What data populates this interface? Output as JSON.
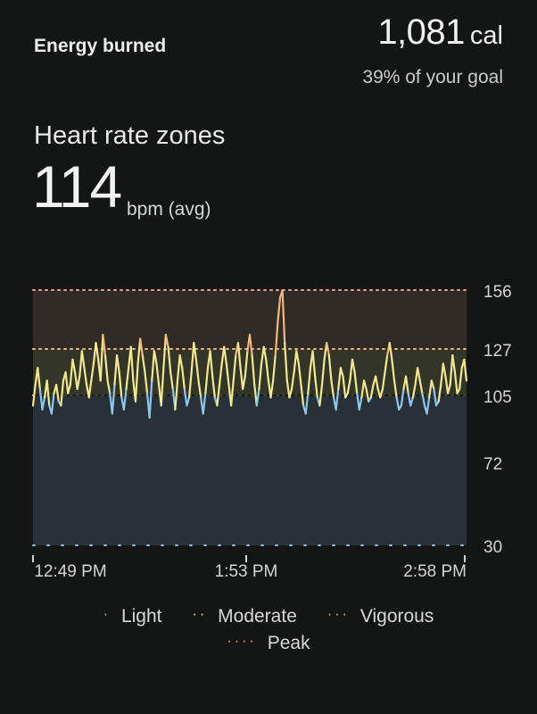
{
  "energy": {
    "label": "Energy burned",
    "value": "1,081",
    "unit": "cal",
    "goal_text": "39% of your goal"
  },
  "heart_rate": {
    "title": "Heart rate zones",
    "avg_value": "114",
    "avg_unit": "bpm (avg)"
  },
  "colors": {
    "light": "#8ec5ef",
    "moderate": "#f2e88e",
    "vigorous": "#f1b77c",
    "peak": "#f2a09a",
    "zone_light_bg": "#283236",
    "zone_moderate_bg": "#333529",
    "zone_vigorous_bg": "#302b27"
  },
  "chart_data": {
    "type": "line",
    "title": "",
    "xlabel": "",
    "ylabel": "",
    "x_ticks": [
      "12:49 PM",
      "1:53 PM",
      "2:58 PM"
    ],
    "y_ticks": [
      30,
      72,
      105,
      127,
      156
    ],
    "ylim": [
      30,
      156
    ],
    "zones": [
      {
        "name": "Light",
        "from": 30,
        "to": 105
      },
      {
        "name": "Moderate",
        "from": 105,
        "to": 127
      },
      {
        "name": "Vigorous",
        "from": 127,
        "to": 156
      },
      {
        "name": "Peak",
        "from": 156,
        "to": 156
      }
    ],
    "legend": [
      "Light",
      "Moderate",
      "Vigorous",
      "Peak"
    ],
    "series": [
      {
        "values": [
          100,
          110,
          118,
          108,
          98,
          104,
          112,
          100,
          96,
          106,
          110,
          102,
          100,
          112,
          116,
          106,
          110,
          122,
          116,
          108,
          114,
          126,
          118,
          110,
          104,
          112,
          120,
          130,
          122,
          112,
          134,
          124,
          112,
          106,
          96,
          110,
          124,
          116,
          104,
          98,
          108,
          118,
          128,
          112,
          102,
          120,
          132,
          124,
          116,
          106,
          94,
          112,
          126,
          120,
          110,
          100,
          118,
          134,
          128,
          116,
          108,
          98,
          112,
          124,
          118,
          108,
          100,
          104,
          116,
          130,
          122,
          112,
          104,
          96,
          106,
          118,
          126,
          114,
          104,
          100,
          110,
          120,
          128,
          120,
          110,
          100,
          112,
          124,
          130,
          118,
          108,
          114,
          126,
          134,
          124,
          110,
          100,
          108,
          120,
          128,
          122,
          112,
          104,
          112,
          124,
          140,
          152,
          156,
          130,
          112,
          104,
          108,
          116,
          126,
          120,
          110,
          100,
          96,
          106,
          118,
          126,
          114,
          104,
          100,
          110,
          122,
          130,
          124,
          112,
          104,
          98,
          108,
          118,
          114,
          104,
          106,
          112,
          122,
          116,
          106,
          98,
          104,
          112,
          108,
          102,
          104,
          110,
          114,
          108,
          104,
          108,
          116,
          124,
          130,
          122,
          112,
          104,
          98,
          100,
          108,
          114,
          106,
          100,
          104,
          110,
          118,
          112,
          106,
          100,
          96,
          104,
          112,
          108,
          100,
          102,
          110,
          120,
          114,
          106,
          110,
          124,
          116,
          106,
          108,
          118,
          122,
          112
        ]
      }
    ]
  },
  "legend": {
    "light": "Light",
    "moderate": "Moderate",
    "vigorous": "Vigorous",
    "peak": "Peak"
  }
}
